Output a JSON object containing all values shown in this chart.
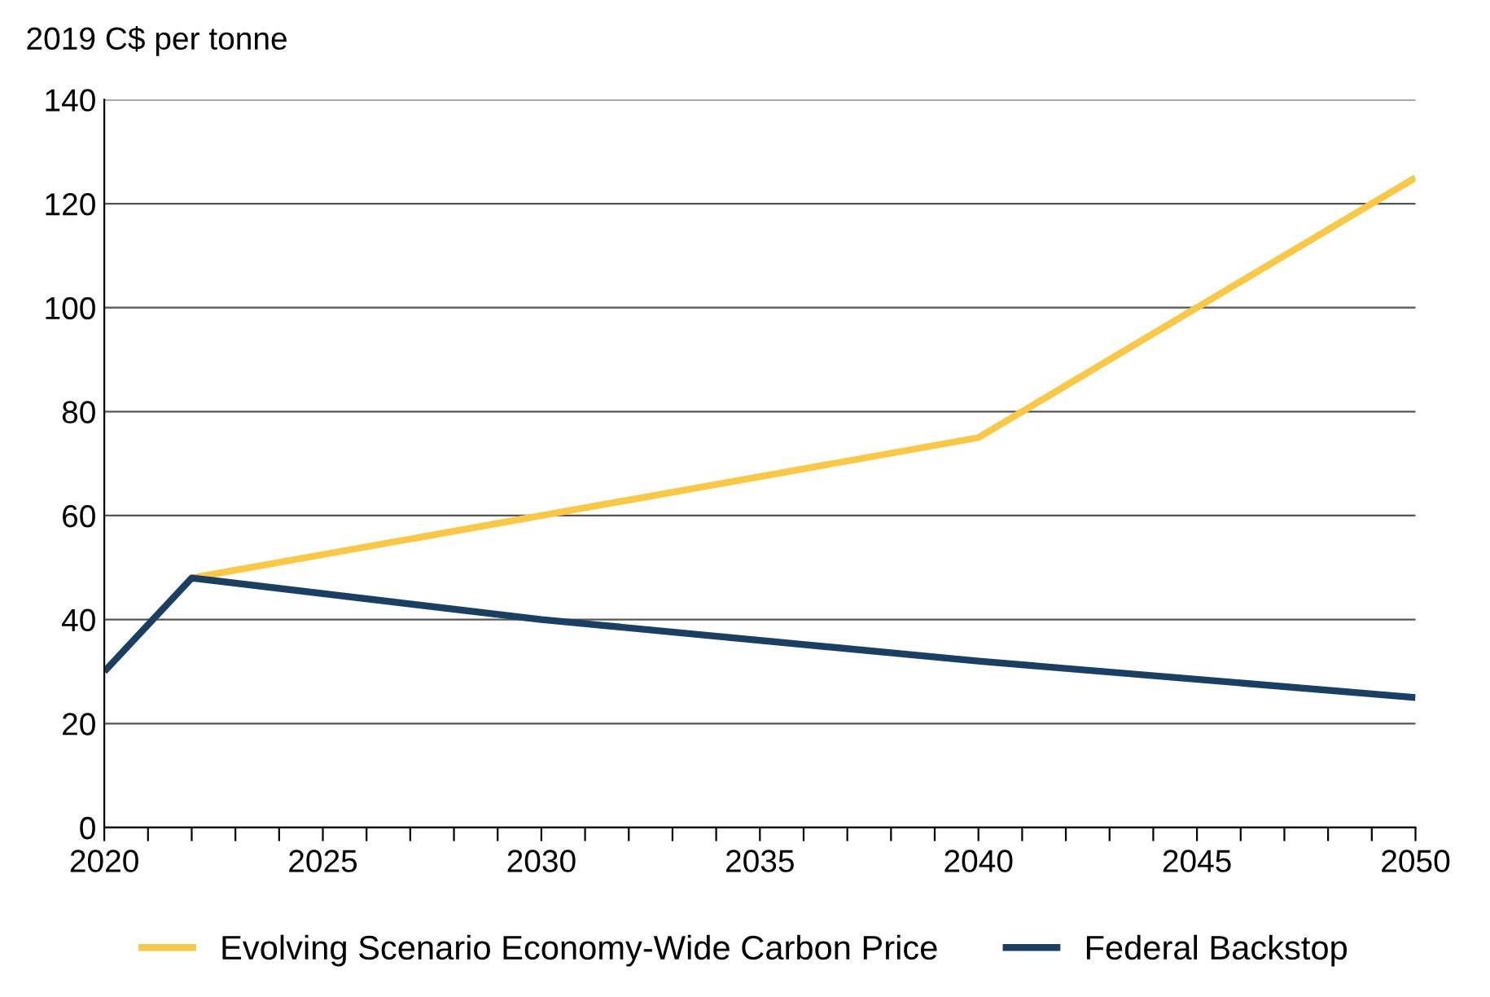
{
  "chart_data": {
    "type": "line",
    "ylabel": "2019 C$ per tonne",
    "xlim": [
      2020,
      2050
    ],
    "ylim": [
      0,
      140
    ],
    "xticks": [
      2020,
      {
        "value": 2021,
        "label": null
      },
      {
        "value": 2022,
        "label": null
      },
      {
        "value": 2023,
        "label": null
      },
      {
        "value": 2024,
        "label": null
      },
      2025,
      {
        "value": 2026,
        "label": null
      },
      {
        "value": 2027,
        "label": null
      },
      {
        "value": 2028,
        "label": null
      },
      {
        "value": 2029,
        "label": null
      },
      2030,
      {
        "value": 2031,
        "label": null
      },
      {
        "value": 2032,
        "label": null
      },
      {
        "value": 2033,
        "label": null
      },
      {
        "value": 2034,
        "label": null
      },
      2035,
      {
        "value": 2036,
        "label": null
      },
      {
        "value": 2037,
        "label": null
      },
      {
        "value": 2038,
        "label": null
      },
      {
        "value": 2039,
        "label": null
      },
      2040,
      {
        "value": 2041,
        "label": null
      },
      {
        "value": 2042,
        "label": null
      },
      {
        "value": 2043,
        "label": null
      },
      {
        "value": 2044,
        "label": null
      },
      2045,
      {
        "value": 2046,
        "label": null
      },
      {
        "value": 2047,
        "label": null
      },
      {
        "value": 2048,
        "label": null
      },
      {
        "value": 2049,
        "label": null
      },
      2050
    ],
    "yticks": [
      0,
      20,
      40,
      60,
      80,
      100,
      120,
      140
    ],
    "grid": "y",
    "legend": "bottom",
    "marker": "none",
    "line_style": "solid",
    "series": [
      {
        "name": "Evolving Scenario Economy-Wide Carbon Price",
        "color": "#f9c846",
        "x": [
          2022,
          2040,
          2050
        ],
        "values": [
          48,
          75,
          125
        ]
      },
      {
        "name": "Federal Backstop",
        "color": "#1b3f63",
        "x": [
          2020,
          2022,
          2030,
          2040,
          2050
        ],
        "values": [
          30,
          48,
          40,
          32,
          25
        ]
      }
    ]
  }
}
